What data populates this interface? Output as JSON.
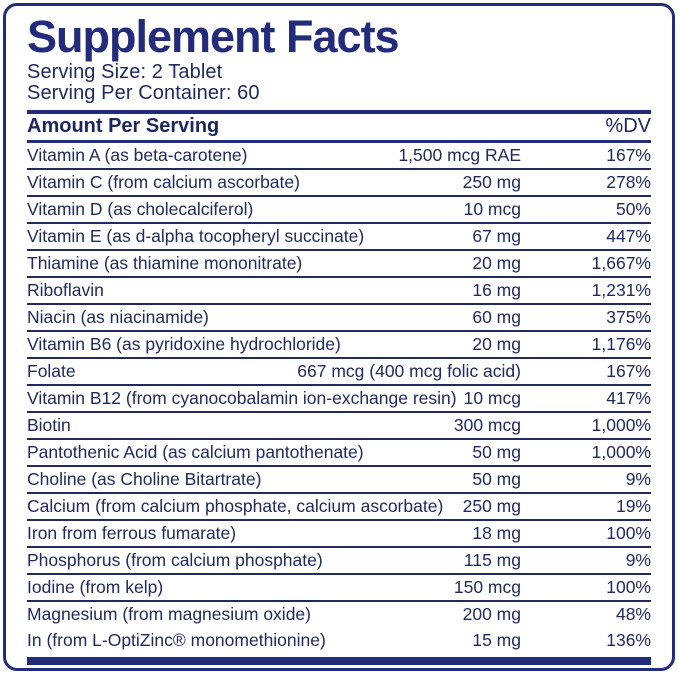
{
  "colors": {
    "navy": "#232c7a",
    "text_navy": "#202a60",
    "background": "#ffffff"
  },
  "label": {
    "title": "Supplement Facts",
    "serving_size": "Serving Size: 2 Tablet",
    "servings_per_container": "Serving Per Container: 60"
  },
  "table": {
    "amount_header": "Amount Per Serving",
    "dv_header": "%DV",
    "rows": [
      {
        "name": "Vitamin A (as beta-carotene)",
        "amount": "1,500 mcg RAE",
        "dv": "167%",
        "divider": true
      },
      {
        "name": "Vitamin C (from calcium ascorbate)",
        "amount": "250 mg",
        "dv": "278%",
        "divider": true
      },
      {
        "name": "Vitamin D (as cholecalciferol)",
        "amount": "10 mcg",
        "dv": "50%",
        "divider": true
      },
      {
        "name": "Vitamin E (as d-alpha tocopheryl succinate)",
        "amount": "67 mg",
        "dv": "447%",
        "divider": true
      },
      {
        "name": "Thiamine (as thiamine mononitrate)",
        "amount": "20 mg",
        "dv": "1,667%",
        "divider": true
      },
      {
        "name": "Riboflavin",
        "amount": "16 mg",
        "dv": "1,231%",
        "divider": true
      },
      {
        "name": "Niacin (as niacinamide)",
        "amount": "60 mg",
        "dv": "375%",
        "divider": true
      },
      {
        "name": "Vitamin B6 (as pyridoxine hydrochloride)",
        "amount": "20 mg",
        "dv": "1,176%",
        "divider": true
      },
      {
        "name": "Folate",
        "amount": "667 mcg (400 mcg folic acid)",
        "dv": "167%",
        "divider": true
      },
      {
        "name": "Vitamin B12 (from cyanocobalamin ion-exchange resin)",
        "amount": "10 mcg",
        "dv": "417%",
        "divider": true
      },
      {
        "name": "Biotin",
        "amount": "300 mcg",
        "dv": "1,000%",
        "divider": true
      },
      {
        "name": "Pantothenic Acid (as calcium pantothenate)",
        "amount": "50 mg",
        "dv": "1,000%",
        "divider": true
      },
      {
        "name": "Choline (as Choline Bitartrate)",
        "amount": "50 mg",
        "dv": "9%",
        "divider": true
      },
      {
        "name": "Calcium  (from calcium phosphate, calcium ascorbate)",
        "amount": "250 mg",
        "dv": "19%",
        "divider": true
      },
      {
        "name": "Iron from ferrous fumarate)",
        "amount": "18 mg",
        "dv": "100%",
        "divider": true
      },
      {
        "name": "Phosphorus (from calcium phosphate)",
        "amount": "115 mg",
        "dv": "9%",
        "divider": true
      },
      {
        "name": "Iodine (from kelp)",
        "amount": "150 mcg",
        "dv": "100%",
        "divider": true
      },
      {
        "name": "Magnesium (from magnesium oxide)",
        "amount": "200 mg",
        "dv": "48%",
        "divider": false
      },
      {
        "name": "In (from L-OptiZinc® monomethionine)",
        "amount": "15 mg",
        "dv": "136%",
        "divider": false
      }
    ]
  }
}
